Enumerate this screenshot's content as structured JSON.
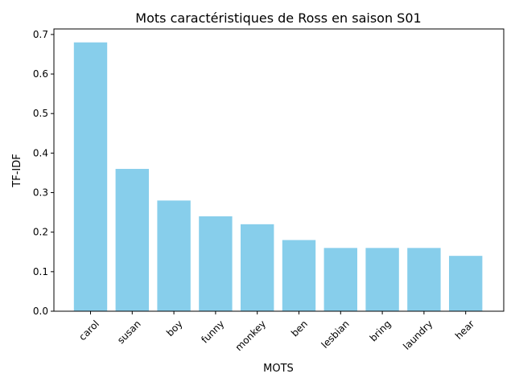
{
  "chart_data": {
    "type": "bar",
    "title": "Mots caractéristiques de Ross en saison S01",
    "xlabel": "MOTS",
    "ylabel": "TF-IDF",
    "categories": [
      "carol",
      "susan",
      "boy",
      "funny",
      "monkey",
      "ben",
      "lesbian",
      "bring",
      "laundry",
      "hear"
    ],
    "values": [
      0.68,
      0.36,
      0.28,
      0.24,
      0.22,
      0.18,
      0.16,
      0.16,
      0.16,
      0.14
    ],
    "ylim": [
      0,
      0.714
    ],
    "yticks": [
      0.0,
      0.1,
      0.2,
      0.3,
      0.4,
      0.5,
      0.6,
      0.7
    ],
    "ytick_labels": [
      "0.0",
      "0.1",
      "0.2",
      "0.3",
      "0.4",
      "0.5",
      "0.6",
      "0.7"
    ],
    "bar_color": "#87CEEB",
    "grid": false,
    "legend": "none"
  }
}
